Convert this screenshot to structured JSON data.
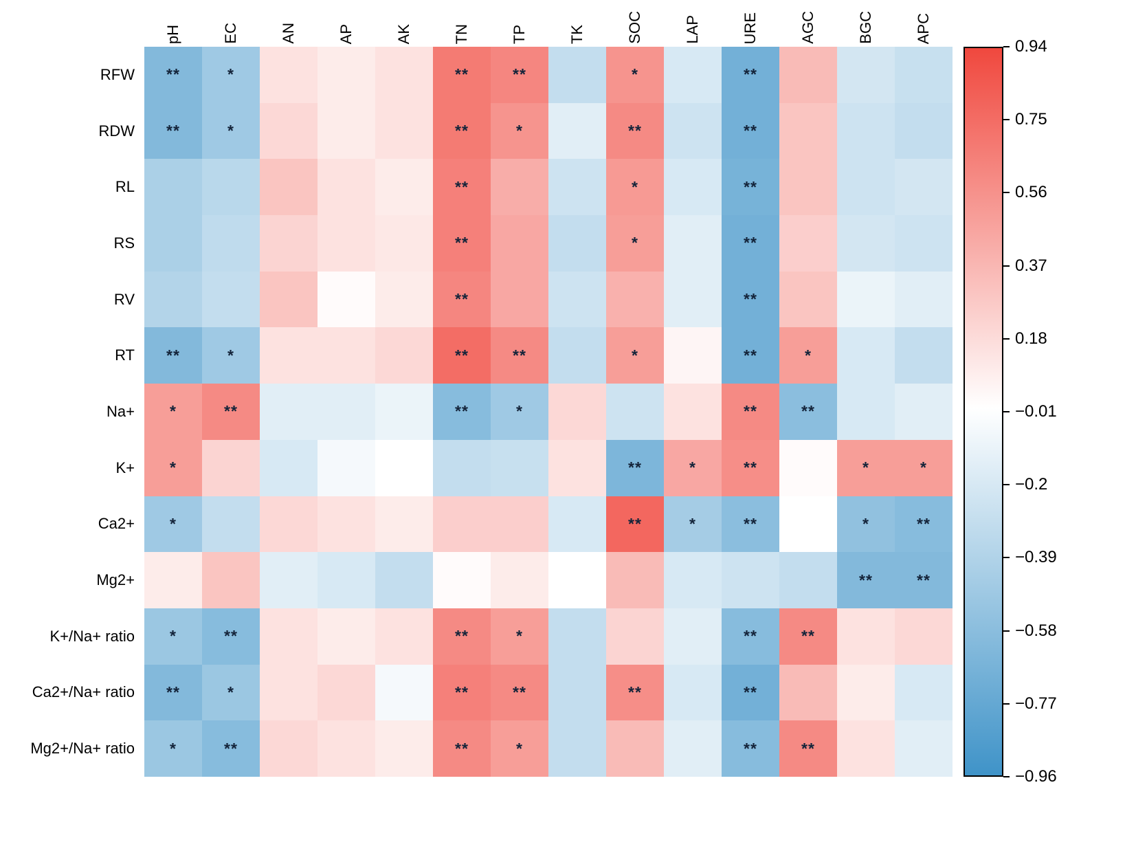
{
  "figure": {
    "title": "",
    "background": "#FFFFFF"
  },
  "chart_data": {
    "type": "heatmap",
    "subtype": "correlation-matrix",
    "columns": [
      "pH",
      "EC",
      "AN",
      "AP",
      "AK",
      "TN",
      "TP",
      "TK",
      "SOC",
      "LAP",
      "URE",
      "AGC",
      "BGC",
      "APC"
    ],
    "rows": [
      "RFW",
      "RDW",
      "RL",
      "RS",
      "RV",
      "RT",
      "Na+",
      "K+",
      "Ca2+",
      "Mg2+",
      "K+/Na+ ratio",
      "Ca2+/Na+ ratio",
      "Mg2+/Na+ ratio"
    ],
    "values": [
      [
        -0.62,
        -0.48,
        0.15,
        0.1,
        0.15,
        0.68,
        0.62,
        -0.3,
        0.55,
        -0.2,
        -0.7,
        0.35,
        -0.22,
        -0.28
      ],
      [
        -0.62,
        -0.48,
        0.2,
        0.1,
        0.15,
        0.68,
        0.55,
        -0.15,
        0.6,
        -0.25,
        -0.7,
        0.3,
        -0.25,
        -0.3
      ],
      [
        -0.42,
        -0.35,
        0.3,
        0.15,
        0.1,
        0.65,
        0.42,
        -0.25,
        0.52,
        -0.2,
        -0.68,
        0.3,
        -0.25,
        -0.22
      ],
      [
        -0.42,
        -0.32,
        0.22,
        0.15,
        0.12,
        0.65,
        0.45,
        -0.3,
        0.5,
        -0.15,
        -0.7,
        0.25,
        -0.22,
        -0.25
      ],
      [
        -0.38,
        -0.3,
        0.3,
        0.02,
        0.1,
        0.62,
        0.45,
        -0.25,
        0.4,
        -0.15,
        -0.7,
        0.3,
        -0.1,
        -0.15
      ],
      [
        -0.62,
        -0.48,
        0.15,
        0.15,
        0.2,
        0.75,
        0.6,
        -0.3,
        0.5,
        0.05,
        -0.7,
        0.5,
        -0.2,
        -0.3
      ],
      [
        0.5,
        0.6,
        -0.15,
        -0.15,
        -0.1,
        -0.6,
        -0.48,
        0.2,
        -0.25,
        0.15,
        0.6,
        -0.58,
        -0.2,
        -0.15
      ],
      [
        0.5,
        0.22,
        -0.2,
        -0.05,
        0.0,
        -0.3,
        -0.28,
        0.15,
        -0.65,
        0.45,
        0.58,
        0.02,
        0.5,
        0.5
      ],
      [
        -0.48,
        -0.3,
        0.2,
        0.15,
        0.1,
        0.25,
        0.25,
        -0.2,
        0.78,
        -0.45,
        -0.58,
        0.0,
        -0.55,
        -0.6
      ],
      [
        0.1,
        0.3,
        -0.15,
        -0.2,
        -0.3,
        0.02,
        0.1,
        0.0,
        0.35,
        -0.2,
        -0.25,
        -0.3,
        -0.62,
        -0.62
      ],
      [
        -0.5,
        -0.6,
        0.15,
        0.1,
        0.15,
        0.6,
        0.5,
        -0.3,
        0.22,
        -0.15,
        -0.6,
        0.6,
        0.15,
        0.2
      ],
      [
        -0.62,
        -0.5,
        0.15,
        0.2,
        -0.05,
        0.65,
        0.6,
        -0.3,
        0.58,
        -0.2,
        -0.7,
        0.35,
        0.1,
        -0.2
      ],
      [
        -0.5,
        -0.6,
        0.2,
        0.15,
        0.1,
        0.6,
        0.5,
        -0.3,
        0.35,
        -0.15,
        -0.6,
        0.6,
        0.15,
        -0.15
      ]
    ],
    "significance": [
      [
        "**",
        "*",
        "",
        "",
        "",
        "**",
        "**",
        "",
        "*",
        "",
        "**",
        "",
        "",
        ""
      ],
      [
        "**",
        "*",
        "",
        "",
        "",
        "**",
        "*",
        "",
        "**",
        "",
        "**",
        "",
        "",
        ""
      ],
      [
        "",
        "",
        "",
        "",
        "",
        "**",
        "",
        "",
        "*",
        "",
        "**",
        "",
        "",
        ""
      ],
      [
        "",
        "",
        "",
        "",
        "",
        "**",
        "",
        "",
        "*",
        "",
        "**",
        "",
        "",
        ""
      ],
      [
        "",
        "",
        "",
        "",
        "",
        "**",
        "",
        "",
        "",
        "",
        "**",
        "",
        "",
        ""
      ],
      [
        "**",
        "*",
        "",
        "",
        "",
        "**",
        "**",
        "",
        "*",
        "",
        "**",
        "*",
        "",
        ""
      ],
      [
        "*",
        "**",
        "",
        "",
        "",
        "**",
        "*",
        "",
        "",
        "",
        "**",
        "**",
        "",
        ""
      ],
      [
        "*",
        "",
        "",
        "",
        "",
        "",
        "",
        "",
        "**",
        "*",
        "**",
        "",
        "*",
        "*"
      ],
      [
        "*",
        "",
        "",
        "",
        "",
        "",
        "",
        "",
        "**",
        "*",
        "**",
        "",
        "*",
        "**"
      ],
      [
        "",
        "",
        "",
        "",
        "",
        "",
        "",
        "",
        "",
        "",
        "",
        "",
        "**",
        "**"
      ],
      [
        "*",
        "**",
        "",
        "",
        "",
        "**",
        "*",
        "",
        "",
        "",
        "**",
        "**",
        "",
        ""
      ],
      [
        "**",
        "*",
        "",
        "",
        "",
        "**",
        "**",
        "",
        "**",
        "",
        "**",
        "",
        "",
        ""
      ],
      [
        "*",
        "**",
        "",
        "",
        "",
        "**",
        "*",
        "",
        "",
        "",
        "**",
        "**",
        "",
        ""
      ]
    ],
    "colorbar": {
      "tick_labels": [
        "0.94",
        "0.75",
        "0.56",
        "0.37",
        "0.18",
        "−0.01",
        "−0.2",
        "−0.39",
        "−0.58",
        "−0.77",
        "−0.96"
      ],
      "tick_values": [
        0.94,
        0.75,
        0.56,
        0.37,
        0.18,
        -0.01,
        -0.2,
        -0.39,
        -0.58,
        -0.77,
        -0.96
      ],
      "max": 0.94,
      "min": -0.96,
      "color_positive": "#F0483E",
      "color_zero": "#FFFFFF",
      "color_negative": "#3F93C8"
    },
    "legend_position": "right",
    "grid": false
  }
}
